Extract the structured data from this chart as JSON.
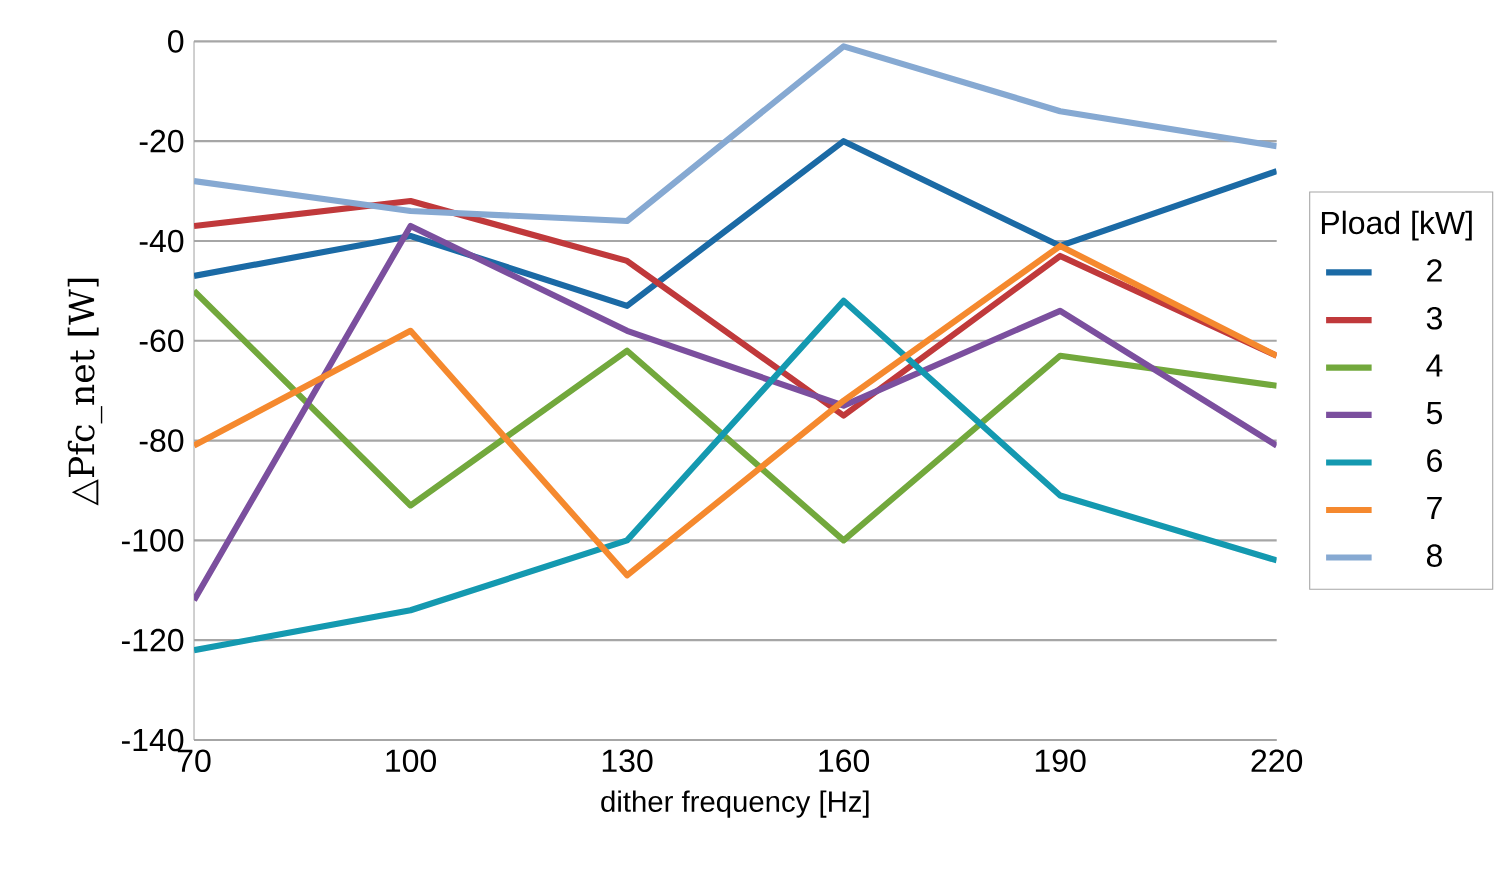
{
  "chart_data": {
    "type": "line",
    "xlabel": "dither frequency [Hz]",
    "ylabel": "△Pfc_net [W]",
    "legend_title": "Pload [kW]",
    "x": [
      70,
      100,
      130,
      160,
      190,
      220
    ],
    "series": [
      {
        "name": "2",
        "color": "#1b6aa5",
        "values": [
          -47,
          -39,
          -53,
          -20,
          -41,
          -26
        ]
      },
      {
        "name": "3",
        "color": "#c0393b",
        "values": [
          -37,
          -32,
          -44,
          -75,
          -43,
          -63
        ]
      },
      {
        "name": "4",
        "color": "#72a83c",
        "values": [
          -50,
          -93,
          -62,
          -100,
          -63,
          -69
        ]
      },
      {
        "name": "5",
        "color": "#7b4f9e",
        "values": [
          -112,
          -37,
          -58,
          -73,
          -54,
          -81
        ]
      },
      {
        "name": "6",
        "color": "#1499b0",
        "values": [
          -122,
          -114,
          -100,
          -52,
          -91,
          -104
        ]
      },
      {
        "name": "7",
        "color": "#f5892e",
        "values": [
          -81,
          -58,
          -107,
          -72,
          -41,
          -63
        ]
      },
      {
        "name": "8",
        "color": "#86a9d2",
        "values": [
          -28,
          -34,
          -36,
          -1,
          -14,
          -21
        ]
      }
    ],
    "xlim": [
      70,
      220
    ],
    "xticks": [
      70,
      100,
      130,
      160,
      190,
      220
    ],
    "ylim": [
      -140,
      0
    ],
    "yticks": [
      -140,
      -120,
      -100,
      -80,
      -60,
      -40,
      -20,
      0
    ],
    "grid": "y",
    "legend": "right",
    "marker": "none",
    "line_style": "solid"
  }
}
